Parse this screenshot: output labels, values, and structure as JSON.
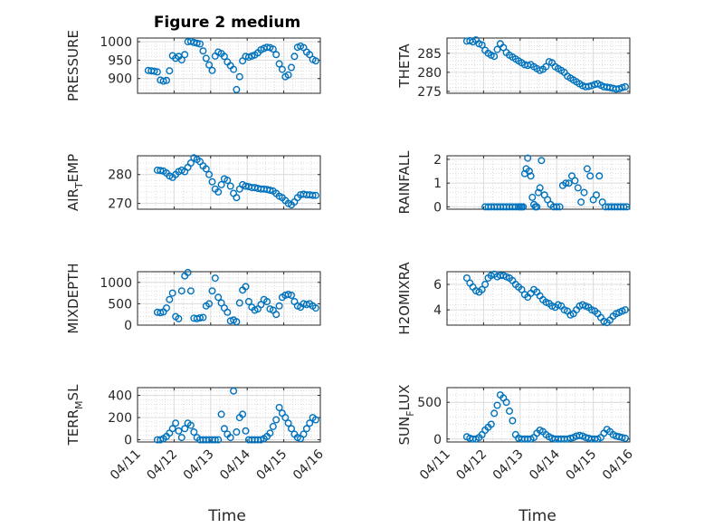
{
  "figure": {
    "title": "Figure 2 medium",
    "xlabel": "Time",
    "x_ticks": [
      "04/11",
      "04/12",
      "04/13",
      "04/14",
      "04/15",
      "04/16"
    ],
    "marker_color": "#0072BD"
  },
  "chart_data": [
    {
      "type": "scatter",
      "ylabel": "PRESSURE",
      "ylim": [
        860,
        1010
      ],
      "yticks": [
        900,
        950,
        1000
      ],
      "grid": true,
      "x": [
        "04/11 07:00",
        "04/11 09:00",
        "04/11 11:00",
        "04/11 13:00",
        "04/11 15:00",
        "04/11 17:00",
        "04/11 19:00",
        "04/11 21:00",
        "04/11 23:00",
        "04/12 01:00",
        "04/12 03:00",
        "04/12 05:00",
        "04/12 07:00",
        "04/12 09:00",
        "04/12 11:00",
        "04/12 13:00",
        "04/12 15:00",
        "04/12 17:00",
        "04/12 19:00",
        "04/12 21:00",
        "04/12 23:00",
        "04/13 01:00",
        "04/13 03:00",
        "04/13 05:00",
        "04/13 07:00",
        "04/13 09:00",
        "04/13 11:00",
        "04/13 13:00",
        "04/13 15:00",
        "04/13 17:00",
        "04/13 19:00",
        "04/13 21:00",
        "04/13 23:00",
        "04/14 01:00",
        "04/14 03:00",
        "04/14 05:00",
        "04/14 07:00",
        "04/14 09:00",
        "04/14 11:00",
        "04/14 13:00",
        "04/14 15:00",
        "04/14 17:00",
        "04/14 19:00",
        "04/14 21:00",
        "04/14 23:00",
        "04/15 01:00",
        "04/15 03:00",
        "04/15 05:00",
        "04/15 07:00",
        "04/15 09:00",
        "04/15 11:00",
        "04/15 13:00",
        "04/15 15:00",
        "04/15 17:00",
        "04/15 19:00",
        "04/15 21:00"
      ],
      "y": [
        922,
        921,
        920,
        918,
        896,
        893,
        895,
        921,
        962,
        955,
        960,
        951,
        965,
        1000,
        1001,
        998,
        996,
        994,
        975,
        955,
        937,
        922,
        961,
        972,
        968,
        960,
        945,
        935,
        925,
        870,
        905,
        948,
        960,
        958,
        961,
        964,
        970,
        978,
        982,
        985,
        984,
        980,
        965,
        940,
        925,
        905,
        910,
        930,
        960,
        985,
        988,
        984,
        972,
        965,
        952,
        948
      ]
    },
    {
      "type": "scatter",
      "ylabel": "THETA",
      "ylim": [
        274.5,
        289
      ],
      "yticks": [
        275,
        280,
        285
      ],
      "grid": true,
      "x": [
        "04/11 13:00",
        "04/11 15:00",
        "04/11 17:00",
        "04/11 19:00",
        "04/11 21:00",
        "04/11 23:00",
        "04/12 01:00",
        "04/12 03:00",
        "04/12 05:00",
        "04/12 07:00",
        "04/12 09:00",
        "04/12 11:00",
        "04/12 13:00",
        "04/12 15:00",
        "04/12 17:00",
        "04/12 19:00",
        "04/12 21:00",
        "04/12 23:00",
        "04/13 01:00",
        "04/13 03:00",
        "04/13 05:00",
        "04/13 07:00",
        "04/13 09:00",
        "04/13 11:00",
        "04/13 13:00",
        "04/13 15:00",
        "04/13 17:00",
        "04/13 19:00",
        "04/13 21:00",
        "04/13 23:00",
        "04/14 01:00",
        "04/14 03:00",
        "04/14 05:00",
        "04/14 07:00",
        "04/14 09:00",
        "04/14 11:00",
        "04/14 13:00",
        "04/14 15:00",
        "04/14 17:00",
        "04/14 19:00",
        "04/14 21:00",
        "04/14 23:00",
        "04/15 01:00",
        "04/15 03:00",
        "04/15 05:00",
        "04/15 07:00",
        "04/15 09:00",
        "04/15 11:00",
        "04/15 13:00",
        "04/15 15:00",
        "04/15 17:00",
        "04/15 19:00",
        "04/15 21:00"
      ],
      "y": [
        288.2,
        288.3,
        288,
        288.5,
        287.5,
        287.2,
        285.8,
        285,
        284.5,
        284.2,
        286,
        287.5,
        286.5,
        285.2,
        284.5,
        284,
        283.5,
        283,
        282.5,
        282,
        281.8,
        282,
        281.5,
        281,
        280.5,
        280.8,
        281.5,
        282.8,
        282.5,
        281.5,
        281,
        280.5,
        280,
        279,
        278.5,
        278,
        277.5,
        277,
        276.5,
        276.2,
        276.3,
        276.5,
        276.8,
        277,
        276.6,
        276.2,
        276.1,
        276,
        275.8,
        275.6,
        275.7,
        276,
        276.2
      ]
    },
    {
      "type": "scatter",
      "ylabel": "AIR_TEMP",
      "ylim": [
        268,
        286.5
      ],
      "yticks": [
        270,
        280
      ],
      "grid": true,
      "x": [
        "04/11 13:00",
        "04/11 15:00",
        "04/11 17:00",
        "04/11 19:00",
        "04/11 21:00",
        "04/11 23:00",
        "04/12 01:00",
        "04/12 03:00",
        "04/12 05:00",
        "04/12 07:00",
        "04/12 09:00",
        "04/12 11:00",
        "04/12 13:00",
        "04/12 15:00",
        "04/12 17:00",
        "04/12 19:00",
        "04/12 21:00",
        "04/12 23:00",
        "04/13 01:00",
        "04/13 03:00",
        "04/13 05:00",
        "04/13 07:00",
        "04/13 09:00",
        "04/13 11:00",
        "04/13 13:00",
        "04/13 15:00",
        "04/13 17:00",
        "04/13 19:00",
        "04/13 21:00",
        "04/13 23:00",
        "04/14 01:00",
        "04/14 03:00",
        "04/14 05:00",
        "04/14 07:00",
        "04/14 09:00",
        "04/14 11:00",
        "04/14 13:00",
        "04/14 15:00",
        "04/14 17:00",
        "04/14 19:00",
        "04/14 21:00",
        "04/14 23:00",
        "04/15 01:00",
        "04/15 03:00",
        "04/15 05:00",
        "04/15 07:00",
        "04/15 09:00",
        "04/15 11:00",
        "04/15 13:00",
        "04/15 15:00",
        "04/15 17:00",
        "04/15 19:00",
        "04/15 21:00"
      ],
      "y": [
        281.5,
        281.4,
        281.2,
        280.5,
        279.5,
        279,
        280,
        281,
        281.5,
        281,
        282.5,
        284,
        285.8,
        285.2,
        284.5,
        283,
        282,
        280,
        277.5,
        275,
        274,
        276.5,
        278.5,
        278,
        276,
        273.5,
        272,
        275,
        276.5,
        276,
        275.8,
        275.5,
        275.5,
        275.2,
        275,
        275,
        274.8,
        274.6,
        274.3,
        273.5,
        272.5,
        272,
        271,
        270,
        269.5,
        270.5,
        272,
        273,
        273.2,
        273,
        273,
        272.8,
        272.8
      ]
    },
    {
      "type": "scatter",
      "ylabel": "RAINFALL",
      "ylim": [
        -0.1,
        2.15
      ],
      "yticks": [
        0,
        1,
        2
      ],
      "grid": true,
      "x": [
        "04/12 01:00",
        "04/12 03:00",
        "04/12 05:00",
        "04/12 07:00",
        "04/12 09:00",
        "04/12 11:00",
        "04/12 13:00",
        "04/12 15:00",
        "04/12 17:00",
        "04/12 19:00",
        "04/12 21:00",
        "04/12 23:00",
        "04/13 00:00",
        "04/13 01:00",
        "04/13 02:00",
        "04/13 03:00",
        "04/13 04:00",
        "04/13 05:00",
        "04/13 06:00",
        "04/13 07:00",
        "04/13 08:00",
        "04/13 09:00",
        "04/13 10:00",
        "04/13 11:00",
        "04/13 12:00",
        "04/13 13:00",
        "04/13 14:00",
        "04/13 16:00",
        "04/13 18:00",
        "04/13 20:00",
        "04/13 22:00",
        "04/14 00:00",
        "04/14 02:00",
        "04/14 04:00",
        "04/14 06:00",
        "04/14 08:00",
        "04/14 10:00",
        "04/14 12:00",
        "04/14 14:00",
        "04/14 16:00",
        "04/14 18:00",
        "04/14 20:00",
        "04/14 22:00",
        "04/15 00:00",
        "04/15 02:00",
        "04/15 04:00",
        "04/15 06:00",
        "04/15 08:00",
        "04/15 10:00",
        "04/15 12:00",
        "04/15 14:00",
        "04/15 16:00",
        "04/15 18:00",
        "04/15 20:00",
        "04/15 22:00"
      ],
      "y": [
        0,
        0,
        0,
        0,
        0,
        0,
        0,
        0,
        0,
        0,
        0,
        0,
        0,
        0,
        0,
        1.4,
        1.6,
        2.05,
        1.5,
        1.3,
        0.4,
        0.1,
        0,
        0,
        0.6,
        0.8,
        1.95,
        0.5,
        0.3,
        0.1,
        0,
        0,
        0,
        0.9,
        1.0,
        1.0,
        1.3,
        1.1,
        0.8,
        0.2,
        0.6,
        1.6,
        1.3,
        0.3,
        0.5,
        1.3,
        0.2,
        0,
        0,
        0,
        0,
        0,
        0,
        0,
        0
      ]
    },
    {
      "type": "scatter",
      "ylabel": "MIXDEPTH",
      "ylim": [
        0,
        1250
      ],
      "yticks": [
        0,
        500,
        1000
      ],
      "grid": true,
      "x": [
        "04/11 13:00",
        "04/11 15:00",
        "04/11 17:00",
        "04/11 19:00",
        "04/11 21:00",
        "04/11 23:00",
        "04/12 01:00",
        "04/12 03:00",
        "04/12 05:00",
        "04/12 07:00",
        "04/12 09:00",
        "04/12 11:00",
        "04/12 13:00",
        "04/12 15:00",
        "04/12 17:00",
        "04/12 19:00",
        "04/12 21:00",
        "04/12 23:00",
        "04/13 01:00",
        "04/13 03:00",
        "04/13 05:00",
        "04/13 07:00",
        "04/13 09:00",
        "04/13 11:00",
        "04/13 13:00",
        "04/13 15:00",
        "04/13 17:00",
        "04/13 19:00",
        "04/13 21:00",
        "04/13 23:00",
        "04/14 01:00",
        "04/14 03:00",
        "04/14 05:00",
        "04/14 07:00",
        "04/14 09:00",
        "04/14 11:00",
        "04/14 13:00",
        "04/14 15:00",
        "04/14 17:00",
        "04/14 19:00",
        "04/14 21:00",
        "04/14 23:00",
        "04/15 01:00",
        "04/15 03:00",
        "04/15 05:00",
        "04/15 07:00",
        "04/15 09:00",
        "04/15 11:00",
        "04/15 13:00",
        "04/15 15:00",
        "04/15 17:00",
        "04/15 19:00",
        "04/15 21:00"
      ],
      "y": [
        300,
        290,
        310,
        400,
        600,
        750,
        200,
        150,
        800,
        1150,
        1230,
        800,
        160,
        150,
        170,
        180,
        450,
        500,
        800,
        1100,
        650,
        520,
        400,
        300,
        100,
        120,
        80,
        520,
        820,
        900,
        550,
        420,
        350,
        380,
        480,
        600,
        550,
        380,
        350,
        250,
        450,
        650,
        700,
        720,
        700,
        550,
        450,
        420,
        500,
        480,
        500,
        450,
        400
      ]
    },
    {
      "type": "scatter",
      "ylabel": "H2OMIXRA",
      "ylim": [
        2.8,
        7
      ],
      "yticks": [
        4,
        6
      ],
      "grid": true,
      "x": [
        "04/11 13:00",
        "04/11 15:00",
        "04/11 17:00",
        "04/11 19:00",
        "04/11 21:00",
        "04/11 23:00",
        "04/12 01:00",
        "04/12 03:00",
        "04/12 05:00",
        "04/12 07:00",
        "04/12 09:00",
        "04/12 11:00",
        "04/12 13:00",
        "04/12 15:00",
        "04/12 17:00",
        "04/12 19:00",
        "04/12 21:00",
        "04/12 23:00",
        "04/13 01:00",
        "04/13 03:00",
        "04/13 05:00",
        "04/13 07:00",
        "04/13 09:00",
        "04/13 11:00",
        "04/13 13:00",
        "04/13 15:00",
        "04/13 17:00",
        "04/13 19:00",
        "04/13 21:00",
        "04/13 23:00",
        "04/14 01:00",
        "04/14 03:00",
        "04/14 05:00",
        "04/14 07:00",
        "04/14 09:00",
        "04/14 11:00",
        "04/14 13:00",
        "04/14 15:00",
        "04/14 17:00",
        "04/14 19:00",
        "04/14 21:00",
        "04/14 23:00",
        "04/15 01:00",
        "04/15 03:00",
        "04/15 05:00",
        "04/15 07:00",
        "04/15 09:00",
        "04/15 11:00",
        "04/15 13:00",
        "04/15 15:00",
        "04/15 17:00",
        "04/15 19:00",
        "04/15 21:00"
      ],
      "y": [
        6.5,
        6.1,
        5.8,
        5.5,
        5.4,
        5.6,
        6.0,
        6.5,
        6.7,
        6.8,
        6.6,
        6.7,
        6.7,
        6.6,
        6.5,
        6.3,
        6.0,
        5.8,
        5.6,
        5.2,
        5.0,
        5.3,
        5.6,
        5.4,
        5.1,
        4.8,
        4.6,
        4.5,
        4.3,
        4.2,
        4.4,
        4.3,
        4.0,
        3.9,
        3.6,
        3.7,
        4.0,
        4.3,
        4.4,
        4.3,
        4.2,
        4.0,
        3.9,
        3.7,
        3.4,
        3.1,
        3.0,
        3.2,
        3.5,
        3.7,
        3.8,
        3.9,
        4.0
      ]
    },
    {
      "type": "scatter",
      "ylabel": "TERR_MSL",
      "ylim": [
        -20,
        470
      ],
      "yticks": [
        0,
        200,
        400
      ],
      "grid": true,
      "x": [
        "04/11 13:00",
        "04/11 15:00",
        "04/11 17:00",
        "04/11 19:00",
        "04/11 21:00",
        "04/11 23:00",
        "04/12 01:00",
        "04/12 03:00",
        "04/12 05:00",
        "04/12 07:00",
        "04/12 09:00",
        "04/12 11:00",
        "04/12 13:00",
        "04/12 15:00",
        "04/12 17:00",
        "04/12 19:00",
        "04/12 21:00",
        "04/12 23:00",
        "04/13 01:00",
        "04/13 03:00",
        "04/13 05:00",
        "04/13 07:00",
        "04/13 09:00",
        "04/13 11:00",
        "04/13 13:00",
        "04/13 15:00",
        "04/13 17:00",
        "04/13 19:00",
        "04/13 21:00",
        "04/13 23:00",
        "04/14 01:00",
        "04/14 03:00",
        "04/14 05:00",
        "04/14 07:00",
        "04/14 09:00",
        "04/14 11:00",
        "04/14 13:00",
        "04/14 15:00",
        "04/14 17:00",
        "04/14 19:00",
        "04/14 21:00",
        "04/14 23:00",
        "04/15 01:00",
        "04/15 03:00",
        "04/15 05:00",
        "04/15 07:00",
        "04/15 09:00",
        "04/15 11:00",
        "04/15 13:00",
        "04/15 15:00",
        "04/15 17:00",
        "04/15 19:00",
        "04/15 21:00"
      ],
      "y": [
        0,
        0,
        10,
        30,
        60,
        100,
        150,
        80,
        20,
        100,
        150,
        130,
        70,
        20,
        0,
        0,
        0,
        0,
        0,
        0,
        0,
        230,
        100,
        50,
        20,
        440,
        70,
        200,
        230,
        80,
        0,
        0,
        0,
        0,
        0,
        10,
        30,
        60,
        120,
        180,
        290,
        240,
        200,
        150,
        100,
        50,
        20,
        10,
        50,
        100,
        150,
        200,
        180
      ]
    },
    {
      "type": "scatter",
      "ylabel": "SUN_FLUX",
      "ylim": [
        -40,
        700
      ],
      "yticks": [
        0,
        500
      ],
      "grid": true,
      "x": [
        "04/11 13:00",
        "04/11 15:00",
        "04/11 17:00",
        "04/11 19:00",
        "04/11 21:00",
        "04/11 23:00",
        "04/12 01:00",
        "04/12 03:00",
        "04/12 05:00",
        "04/12 07:00",
        "04/12 09:00",
        "04/12 11:00",
        "04/12 13:00",
        "04/12 15:00",
        "04/12 17:00",
        "04/12 19:00",
        "04/12 21:00",
        "04/12 23:00",
        "04/13 01:00",
        "04/13 03:00",
        "04/13 05:00",
        "04/13 07:00",
        "04/13 09:00",
        "04/13 11:00",
        "04/13 13:00",
        "04/13 15:00",
        "04/13 17:00",
        "04/13 19:00",
        "04/13 21:00",
        "04/13 23:00",
        "04/14 01:00",
        "04/14 03:00",
        "04/14 05:00",
        "04/14 07:00",
        "04/14 09:00",
        "04/14 11:00",
        "04/14 13:00",
        "04/14 15:00",
        "04/14 17:00",
        "04/14 19:00",
        "04/14 21:00",
        "04/14 23:00",
        "04/15 01:00",
        "04/15 03:00",
        "04/15 05:00",
        "04/15 07:00",
        "04/15 09:00",
        "04/15 11:00",
        "04/15 13:00",
        "04/15 15:00",
        "04/15 17:00",
        "04/15 19:00",
        "04/15 21:00"
      ],
      "y": [
        30,
        10,
        0,
        0,
        20,
        60,
        120,
        160,
        200,
        350,
        460,
        600,
        560,
        500,
        380,
        250,
        60,
        10,
        0,
        0,
        0,
        0,
        20,
        80,
        120,
        100,
        60,
        30,
        10,
        0,
        0,
        0,
        0,
        0,
        10,
        20,
        40,
        50,
        40,
        20,
        10,
        0,
        0,
        0,
        20,
        80,
        130,
        100,
        60,
        40,
        30,
        20,
        10
      ]
    }
  ]
}
